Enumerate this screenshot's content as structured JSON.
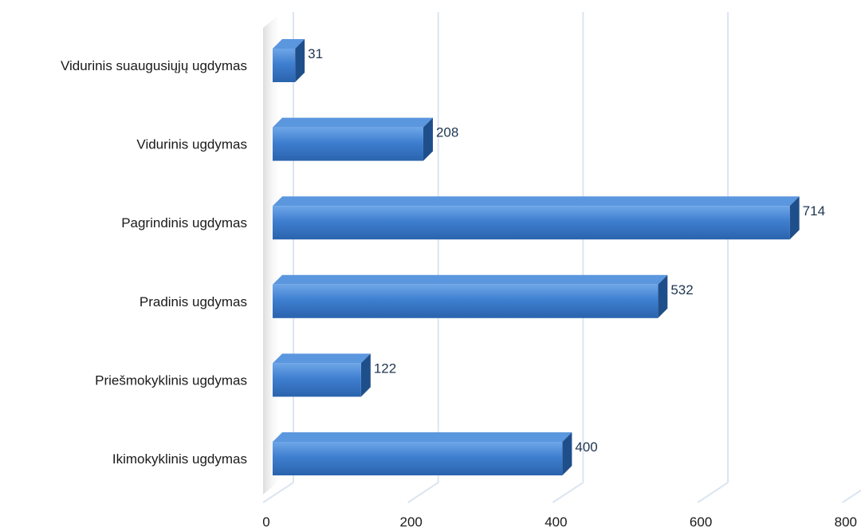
{
  "chart_data": {
    "type": "bar",
    "orientation": "horizontal",
    "style": "3d",
    "categories": [
      "Ikimokyklinis ugdymas",
      "Priešmokyklinis ugdymas",
      "Pradinis ugdymas",
      "Pagrindinis ugdymas",
      "Vidurinis ugdymas",
      "Vidurinis suaugusiųjų ugdymas"
    ],
    "values": [
      400,
      122,
      532,
      714,
      208,
      31
    ],
    "xlim": [
      0,
      800
    ],
    "xticks": [
      0,
      200,
      400,
      600,
      800
    ],
    "grid": true,
    "title": "",
    "xlabel": "",
    "ylabel": "",
    "colors": {
      "bar_front": "#3f7fd0",
      "bar_top": "#5b97de",
      "bar_side": "#1f4f8a",
      "grid": "#dbe5f1",
      "value_label": "#1f3550"
    }
  }
}
